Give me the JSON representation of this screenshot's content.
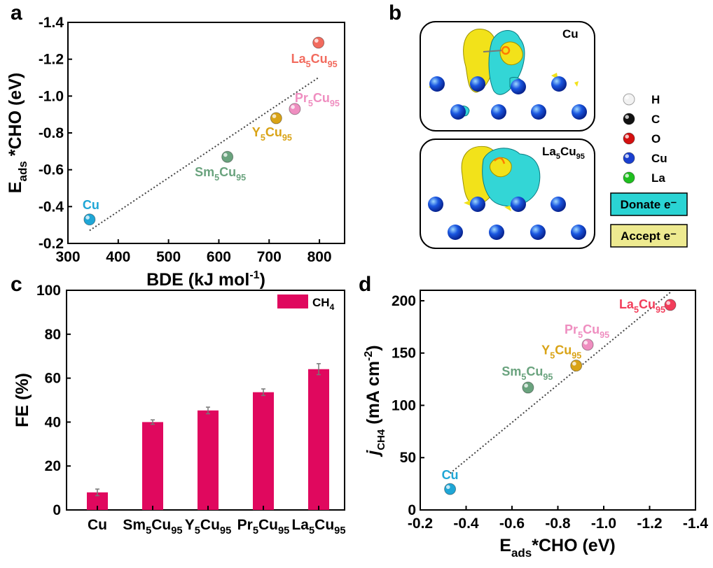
{
  "panels": {
    "a": "a",
    "b": "b",
    "c": "c",
    "d": "d"
  },
  "chart_data": [
    {
      "id": "a",
      "type": "scatter",
      "xlabel": "BDE (kJ mol⁻¹)",
      "ylabel": "E_ads *CHO (eV)",
      "xlim": [
        300,
        850
      ],
      "ylim": [
        -0.2,
        -1.4
      ],
      "xticks": [
        300,
        400,
        500,
        600,
        700,
        800
      ],
      "yticks": [
        -0.2,
        -0.4,
        -0.6,
        -0.8,
        -1.0,
        -1.2,
        -1.4
      ],
      "points": [
        {
          "label": "Cu",
          "x": 343,
          "y": -0.33,
          "color": "#1fa6d6"
        },
        {
          "label": "Sm5Cu95",
          "x": 617,
          "y": -0.67,
          "color": "#6aa37e"
        },
        {
          "label": "Y5Cu95",
          "x": 714,
          "y": -0.88,
          "color": "#d9a316"
        },
        {
          "label": "Pr5Cu95",
          "x": 751,
          "y": -0.93,
          "color": "#ef8ec0"
        },
        {
          "label": "La5Cu95",
          "x": 798,
          "y": -1.29,
          "color": "#f26b5e"
        }
      ],
      "fit_line": {
        "x": [
          343,
          798
        ],
        "y": [
          -0.27,
          -1.1
        ]
      }
    },
    {
      "id": "c",
      "type": "bar",
      "categories": [
        "Cu",
        "Sm5Cu95",
        "Y5Cu95",
        "Pr5Cu95",
        "La5Cu95"
      ],
      "values": [
        8.0,
        40.0,
        45.3,
        53.6,
        64.1
      ],
      "errors": [
        1.5,
        1.0,
        1.5,
        1.5,
        2.5
      ],
      "ylabel": "FE (%)",
      "ylim": [
        0,
        100
      ],
      "yticks": [
        0,
        20,
        40,
        60,
        80,
        100
      ],
      "legend": "CH₄",
      "legend_position": "top-right",
      "color": "#e0085e"
    },
    {
      "id": "d",
      "type": "scatter",
      "xlabel": "E_ads *CHO (eV)",
      "ylabel": "j_CH4 (mA cm⁻²)",
      "xlim": [
        -0.2,
        -1.4
      ],
      "ylim": [
        0,
        210
      ],
      "xticks": [
        -0.2,
        -0.4,
        -0.6,
        -0.8,
        -1.0,
        -1.2,
        -1.4
      ],
      "yticks": [
        0,
        50,
        100,
        150,
        200
      ],
      "points": [
        {
          "label": "Cu",
          "x": -0.33,
          "y": 20,
          "color": "#1fa6d6"
        },
        {
          "label": "Sm5Cu95",
          "x": -0.67,
          "y": 117,
          "color": "#6aa37e"
        },
        {
          "label": "Y5Cu95",
          "x": -0.88,
          "y": 138,
          "color": "#d9a316"
        },
        {
          "label": "Pr5Cu95",
          "x": -0.93,
          "y": 158,
          "color": "#ef8ec0"
        },
        {
          "label": "La5Cu95",
          "x": -1.29,
          "y": 196,
          "color": "#f23d5a"
        }
      ],
      "fit_line": {
        "x": [
          -0.33,
          -1.29
        ],
        "y": [
          35,
          208
        ]
      }
    }
  ],
  "panel_b": {
    "top_label": "Cu",
    "bottom_label": "La5Cu95",
    "atom_legend": [
      {
        "label": "H",
        "color": "#f2f2f2"
      },
      {
        "label": "C",
        "color": "#111111"
      },
      {
        "label": "O",
        "color": "#d41010"
      },
      {
        "label": "Cu",
        "color": "#1a3fcf"
      },
      {
        "label": "La",
        "color": "#1fbf1f"
      }
    ],
    "donate_label": "Donate e⁻",
    "accept_label": "Accept e⁻",
    "donate_color": "#2ad4d4",
    "accept_color": "#eeea90"
  }
}
